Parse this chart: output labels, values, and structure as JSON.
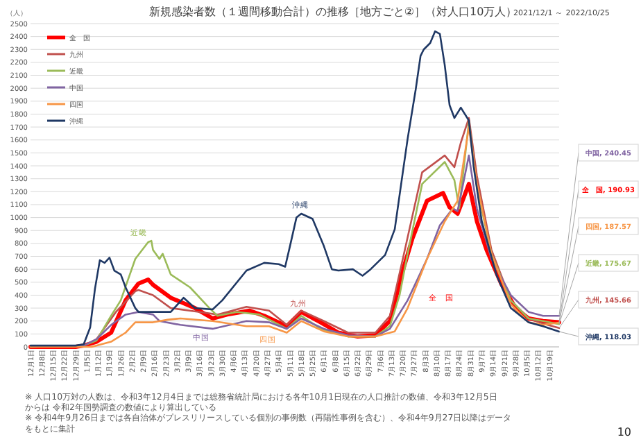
{
  "chart_data": {
    "type": "line",
    "title": "新規感染者数（１週間移動合計）の推移［地方ごと②］（対人口10万人）",
    "subtitle": "2021/12/1 ～ 2022/10/25",
    "ylabel": "（人）",
    "xlim": [
      "2021-12-01",
      "2022-10-25"
    ],
    "xticks": [
      {
        "value": "2021-12-01",
        "label": "12月1日"
      },
      {
        "value": "2021-12-08",
        "label": "12月8日"
      },
      {
        "value": "2021-12-15",
        "label": "12月15日"
      },
      {
        "value": "2021-12-22",
        "label": "12月22日"
      },
      {
        "value": "2021-12-29",
        "label": "12月29日"
      },
      {
        "value": "2022-01-05",
        "label": "1月5日"
      },
      {
        "value": "2022-01-12",
        "label": "1月12日"
      },
      {
        "value": "2022-01-19",
        "label": "1月19日"
      },
      {
        "value": "2022-01-26",
        "label": "1月26日"
      },
      {
        "value": "2022-02-02",
        "label": "2月2日"
      },
      {
        "value": "2022-02-09",
        "label": "2月9日"
      },
      {
        "value": "2022-02-16",
        "label": "2月16日"
      },
      {
        "value": "2022-02-23",
        "label": "2月23日"
      },
      {
        "value": "2022-03-02",
        "label": "3月2日"
      },
      {
        "value": "2022-03-09",
        "label": "3月9日"
      },
      {
        "value": "2022-03-16",
        "label": "3月16日"
      },
      {
        "value": "2022-03-23",
        "label": "3月23日"
      },
      {
        "value": "2022-03-30",
        "label": "3月30日"
      },
      {
        "value": "2022-04-06",
        "label": "4月6日"
      },
      {
        "value": "2022-04-13",
        "label": "4月13日"
      },
      {
        "value": "2022-04-20",
        "label": "4月20日"
      },
      {
        "value": "2022-04-27",
        "label": "4月27日"
      },
      {
        "value": "2022-05-04",
        "label": "5月4日"
      },
      {
        "value": "2022-05-11",
        "label": "5月11日"
      },
      {
        "value": "2022-05-18",
        "label": "5月18日"
      },
      {
        "value": "2022-05-25",
        "label": "5月25日"
      },
      {
        "value": "2022-06-01",
        "label": "6月1日"
      },
      {
        "value": "2022-06-08",
        "label": "6月8日"
      },
      {
        "value": "2022-06-15",
        "label": "6月15日"
      },
      {
        "value": "2022-06-22",
        "label": "6月22日"
      },
      {
        "value": "2022-06-29",
        "label": "6月29日"
      },
      {
        "value": "2022-07-06",
        "label": "7月6日"
      },
      {
        "value": "2022-07-13",
        "label": "7月13日"
      },
      {
        "value": "2022-07-20",
        "label": "7月20日"
      },
      {
        "value": "2022-07-27",
        "label": "7月27日"
      },
      {
        "value": "2022-08-03",
        "label": "8月3日"
      },
      {
        "value": "2022-08-10",
        "label": "8月10日"
      },
      {
        "value": "2022-08-17",
        "label": "8月17日"
      },
      {
        "value": "2022-08-24",
        "label": "8月24日"
      },
      {
        "value": "2022-08-31",
        "label": "8月31日"
      },
      {
        "value": "2022-09-07",
        "label": "9月7日"
      },
      {
        "value": "2022-09-14",
        "label": "9月14日"
      },
      {
        "value": "2022-09-21",
        "label": "9月21日"
      },
      {
        "value": "2022-09-28",
        "label": "9月28日"
      },
      {
        "value": "2022-10-05",
        "label": "10月5日"
      },
      {
        "value": "2022-10-12",
        "label": "10月12日"
      },
      {
        "value": "2022-10-19",
        "label": "10月19日"
      }
    ],
    "ylim": [
      0,
      2500
    ],
    "yticks": [
      0,
      100,
      200,
      300,
      400,
      500,
      600,
      700,
      800,
      900,
      1000,
      1100,
      1200,
      1300,
      1400,
      1500,
      1600,
      1700,
      1800,
      1900,
      2000,
      2100,
      2200,
      2300,
      2400,
      2500
    ],
    "grid": "y",
    "legend": "top left",
    "marker": "none",
    "line_style": "solid",
    "series": [
      {
        "name": "全　国",
        "color": "#ff0000",
        "x": [
          "2021-12-01",
          "2021-12-29",
          "2022-01-03",
          "2022-01-11",
          "2022-01-20",
          "2022-01-29",
          "2022-02-06",
          "2022-02-12",
          "2022-02-15",
          "2022-02-26",
          "2022-03-13",
          "2022-03-24",
          "2022-04-02",
          "2022-04-16",
          "2022-04-25",
          "2022-05-09",
          "2022-05-18",
          "2022-05-30",
          "2022-06-10",
          "2022-06-22",
          "2022-07-03",
          "2022-07-12",
          "2022-07-20",
          "2022-07-26",
          "2022-08-04",
          "2022-08-14",
          "2022-08-18",
          "2022-08-23",
          "2022-08-30",
          "2022-09-04",
          "2022-09-10",
          "2022-09-19",
          "2022-09-28",
          "2022-10-06",
          "2022-10-15",
          "2022-10-25"
        ],
        "values": [
          0,
          0,
          10,
          40,
          110,
          360,
          490,
          520,
          480,
          380,
          300,
          220,
          250,
          280,
          240,
          160,
          270,
          190,
          110,
          80,
          90,
          200,
          590,
          840,
          1130,
          1190,
          1080,
          1030,
          1260,
          970,
          750,
          490,
          300,
          220,
          200,
          190.93
        ]
      },
      {
        "name": "九州",
        "color": "#c0504d",
        "x": [
          "2021-12-01",
          "2022-01-03",
          "2022-01-11",
          "2022-01-23",
          "2022-02-04",
          "2022-02-06",
          "2022-02-15",
          "2022-02-26",
          "2022-03-16",
          "2022-03-27",
          "2022-04-14",
          "2022-04-28",
          "2022-05-09",
          "2022-05-18",
          "2022-06-01",
          "2022-06-16",
          "2022-07-03",
          "2022-07-12",
          "2022-07-20",
          "2022-08-01",
          "2022-08-15",
          "2022-08-21",
          "2022-08-25",
          "2022-08-30",
          "2022-09-04",
          "2022-09-13",
          "2022-09-25",
          "2022-10-06",
          "2022-10-15",
          "2022-10-25"
        ],
        "values": [
          0,
          10,
          60,
          270,
          430,
          440,
          400,
          300,
          270,
          250,
          310,
          280,
          170,
          280,
          200,
          110,
          110,
          240,
          680,
          1350,
          1480,
          1390,
          1580,
          1770,
          1320,
          750,
          360,
          220,
          180,
          145.66
        ]
      },
      {
        "name": "近畿",
        "color": "#9bbb59",
        "x": [
          "2021-12-01",
          "2022-01-03",
          "2022-01-11",
          "2022-01-20",
          "2022-01-26",
          "2022-02-04",
          "2022-02-12",
          "2022-02-14",
          "2022-02-15",
          "2022-02-19",
          "2022-02-21",
          "2022-02-26",
          "2022-03-10",
          "2022-03-22",
          "2022-03-27",
          "2022-04-08",
          "2022-04-22",
          "2022-05-09",
          "2022-05-18",
          "2022-05-30",
          "2022-06-16",
          "2022-07-03",
          "2022-07-12",
          "2022-07-18",
          "2022-07-23",
          "2022-08-01",
          "2022-08-15",
          "2022-08-21",
          "2022-08-24",
          "2022-08-30",
          "2022-09-04",
          "2022-09-13",
          "2022-09-25",
          "2022-10-06",
          "2022-10-15",
          "2022-10-25"
        ],
        "values": [
          0,
          10,
          50,
          240,
          360,
          680,
          810,
          820,
          750,
          680,
          720,
          560,
          460,
          300,
          240,
          270,
          250,
          140,
          240,
          140,
          80,
          80,
          160,
          400,
          720,
          1260,
          1430,
          1290,
          1070,
          1740,
          1230,
          720,
          360,
          220,
          200,
          175.67
        ]
      },
      {
        "name": "中国",
        "color": "#8064a2",
        "x": [
          "2021-12-01",
          "2022-01-03",
          "2022-01-11",
          "2022-01-20",
          "2022-01-29",
          "2022-02-06",
          "2022-02-15",
          "2022-02-19",
          "2022-03-04",
          "2022-03-24",
          "2022-04-14",
          "2022-04-28",
          "2022-05-09",
          "2022-05-18",
          "2022-06-01",
          "2022-06-16",
          "2022-07-03",
          "2022-07-12",
          "2022-07-23",
          "2022-08-04",
          "2022-08-12",
          "2022-08-20",
          "2022-08-23",
          "2022-08-30",
          "2022-09-04",
          "2022-09-13",
          "2022-09-25",
          "2022-10-06",
          "2022-10-15",
          "2022-10-25"
        ],
        "values": [
          0,
          10,
          60,
          170,
          250,
          270,
          250,
          200,
          170,
          140,
          200,
          190,
          140,
          220,
          140,
          90,
          80,
          140,
          360,
          680,
          940,
          1070,
          1050,
          1480,
          1070,
          680,
          400,
          270,
          240,
          240.45
        ]
      },
      {
        "name": "四国",
        "color": "#f79646",
        "x": [
          "2021-12-01",
          "2022-01-08",
          "2022-01-20",
          "2022-01-29",
          "2022-02-04",
          "2022-02-15",
          "2022-02-24",
          "2022-03-04",
          "2022-03-24",
          "2022-04-14",
          "2022-04-28",
          "2022-05-09",
          "2022-05-18",
          "2022-06-01",
          "2022-06-16",
          "2022-07-03",
          "2022-07-15",
          "2022-07-23",
          "2022-08-04",
          "2022-08-15",
          "2022-08-23",
          "2022-08-30",
          "2022-09-04",
          "2022-09-13",
          "2022-09-25",
          "2022-10-06",
          "2022-10-15",
          "2022-10-25"
        ],
        "values": [
          0,
          0,
          40,
          110,
          190,
          190,
          210,
          220,
          200,
          160,
          160,
          110,
          200,
          120,
          80,
          80,
          120,
          300,
          680,
          970,
          1130,
          1700,
          1260,
          720,
          330,
          190,
          170,
          187.57
        ]
      },
      {
        "name": "沖縄",
        "color": "#1f3864",
        "x": [
          "2021-12-01",
          "2021-12-29",
          "2022-01-03",
          "2022-01-07",
          "2022-01-10",
          "2022-01-13",
          "2022-01-16",
          "2022-01-19",
          "2022-01-22",
          "2022-01-26",
          "2022-01-29",
          "2022-02-04",
          "2022-02-06",
          "2022-02-15",
          "2022-02-26",
          "2022-03-06",
          "2022-03-13",
          "2022-03-24",
          "2022-03-30",
          "2022-04-14",
          "2022-04-25",
          "2022-05-04",
          "2022-05-08",
          "2022-05-11",
          "2022-05-15",
          "2022-05-18",
          "2022-05-25",
          "2022-06-01",
          "2022-06-06",
          "2022-06-10",
          "2022-06-19",
          "2022-06-25",
          "2022-06-30",
          "2022-07-09",
          "2022-07-15",
          "2022-07-20",
          "2022-07-23",
          "2022-07-28",
          "2022-07-31",
          "2022-08-02",
          "2022-08-06",
          "2022-08-09",
          "2022-08-12",
          "2022-08-15",
          "2022-08-18",
          "2022-08-21",
          "2022-08-25",
          "2022-08-30",
          "2022-09-02",
          "2022-09-07",
          "2022-09-16",
          "2022-09-25",
          "2022-10-06",
          "2022-10-15",
          "2022-10-25"
        ],
        "values": [
          10,
          10,
          20,
          150,
          450,
          670,
          650,
          690,
          590,
          560,
          460,
          300,
          270,
          270,
          270,
          380,
          300,
          290,
          360,
          590,
          650,
          640,
          620,
          780,
          1000,
          1030,
          990,
          780,
          600,
          590,
          600,
          550,
          600,
          710,
          910,
          1350,
          1610,
          1990,
          2250,
          2300,
          2350,
          2440,
          2420,
          2180,
          1870,
          1770,
          1850,
          1750,
          1390,
          970,
          560,
          300,
          190,
          160,
          118.03
        ]
      }
    ],
    "annotations": [
      "沖縄",
      "近畿",
      "九州",
      "中国",
      "四国",
      "全　国",
      {
        "text": "中国, 240.45",
        "x": "2022-10-25",
        "y": 240.45
      },
      {
        "text": "全　国, 190.93",
        "x": "2022-10-25",
        "y": 190.93
      },
      {
        "text": "四国, 187.57",
        "x": "2022-10-25",
        "y": 187.57
      },
      {
        "text": "近畿, 175.67",
        "x": "2022-10-25",
        "y": 175.67
      },
      {
        "text": "九州, 145.66",
        "x": "2022-10-25",
        "y": 145.66
      },
      {
        "text": "沖縄, 118.03",
        "x": "2022-10-25",
        "y": 118.03
      },
      "※ 人口10万対の人数は、令和3年12月4日までは総務省統計局における各年10月1日現在の人口推計の数値、令和3年12月5日からは 令和2年国勢調査の数値により算出している",
      "※ 令和4年9月26日までは各自治体がプレスリリースしている個別の事例数（再陽性事例を含む）、令和4年9月27日以降はデータをもとに集計",
      "10"
    ]
  }
}
